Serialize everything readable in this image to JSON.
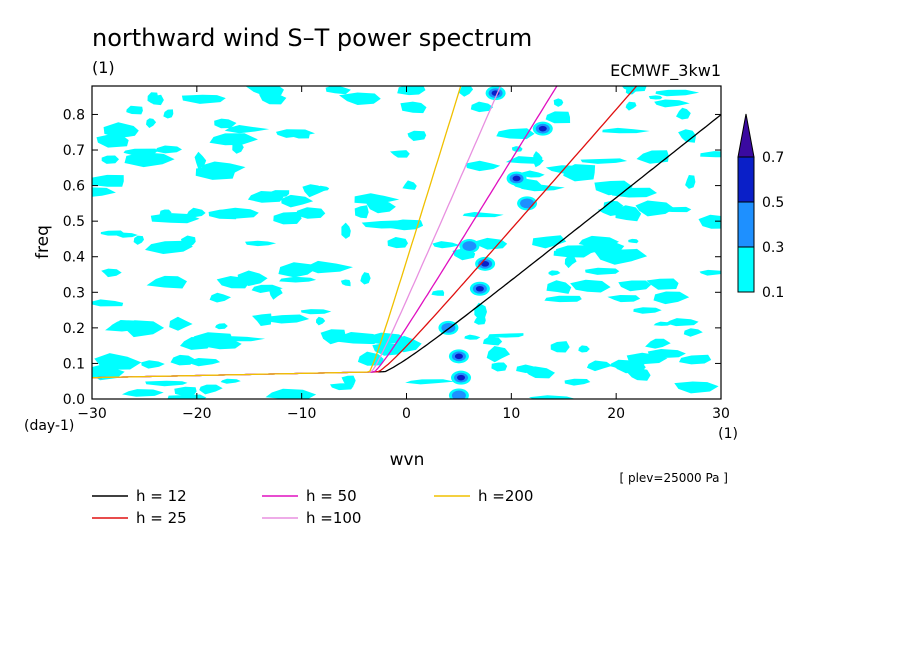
{
  "chart_data": {
    "type": "contour",
    "title": "northward wind S–T power spectrum",
    "subtitle_left": "(1)",
    "subtitle_right": "ECMWF_3kw1",
    "xlabel": "wvn",
    "ylabel": "freq",
    "x_unit": "(1)",
    "y_unit": "(day-1)",
    "xlim": [
      -30,
      30
    ],
    "ylim": [
      0,
      0.88
    ],
    "x_ticks": [
      -30,
      -20,
      -10,
      0,
      10,
      20,
      30
    ],
    "x_tick_labels": [
      "−30",
      "−20",
      "−10",
      "0",
      "10",
      "20",
      "30"
    ],
    "y_ticks": [
      0.0,
      0.1,
      0.2,
      0.3,
      0.4,
      0.5,
      0.6,
      0.7,
      0.8
    ],
    "y_tick_labels": [
      "0.0",
      "0.1",
      "0.2",
      "0.3",
      "0.4",
      "0.5",
      "0.6",
      "0.7",
      "0.8"
    ],
    "annotation": "[ plev=25000 Pa ]",
    "colorbar": {
      "levels": [
        0.1,
        0.3,
        0.5,
        0.7
      ],
      "labels": [
        "0.1",
        "0.3",
        "0.5",
        "0.7"
      ],
      "colors": [
        "#00ffff",
        "#1e90ff",
        "#0a1fc8",
        "#3a0aa0"
      ]
    },
    "dispersion_curves": [
      {
        "label": "h = 12",
        "h": 12,
        "color": "#000000"
      },
      {
        "label": "h = 25",
        "h": 25,
        "color": "#e01010"
      },
      {
        "label": "h = 50",
        "h": 50,
        "color": "#e010c0"
      },
      {
        "label": "h =100",
        "h": 100,
        "color": "#e890e0"
      },
      {
        "label": "h =200",
        "h": 200,
        "color": "#f0c000"
      }
    ],
    "blobs": [
      {
        "x": 5.0,
        "y": 0.12,
        "level": 3
      },
      {
        "x": 5.2,
        "y": 0.06,
        "level": 3
      },
      {
        "x": 5.0,
        "y": 0.01,
        "level": 2
      },
      {
        "x": 7.5,
        "y": 0.38,
        "level": 3
      },
      {
        "x": 7.0,
        "y": 0.31,
        "level": 3
      },
      {
        "x": 6.0,
        "y": 0.43,
        "level": 2
      },
      {
        "x": 10.5,
        "y": 0.62,
        "level": 3
      },
      {
        "x": 13.0,
        "y": 0.76,
        "level": 3
      },
      {
        "x": 8.5,
        "y": 0.86,
        "level": 3
      },
      {
        "x": 11.5,
        "y": 0.55,
        "level": 2
      },
      {
        "x": 4.0,
        "y": 0.2,
        "level": 2
      }
    ]
  }
}
